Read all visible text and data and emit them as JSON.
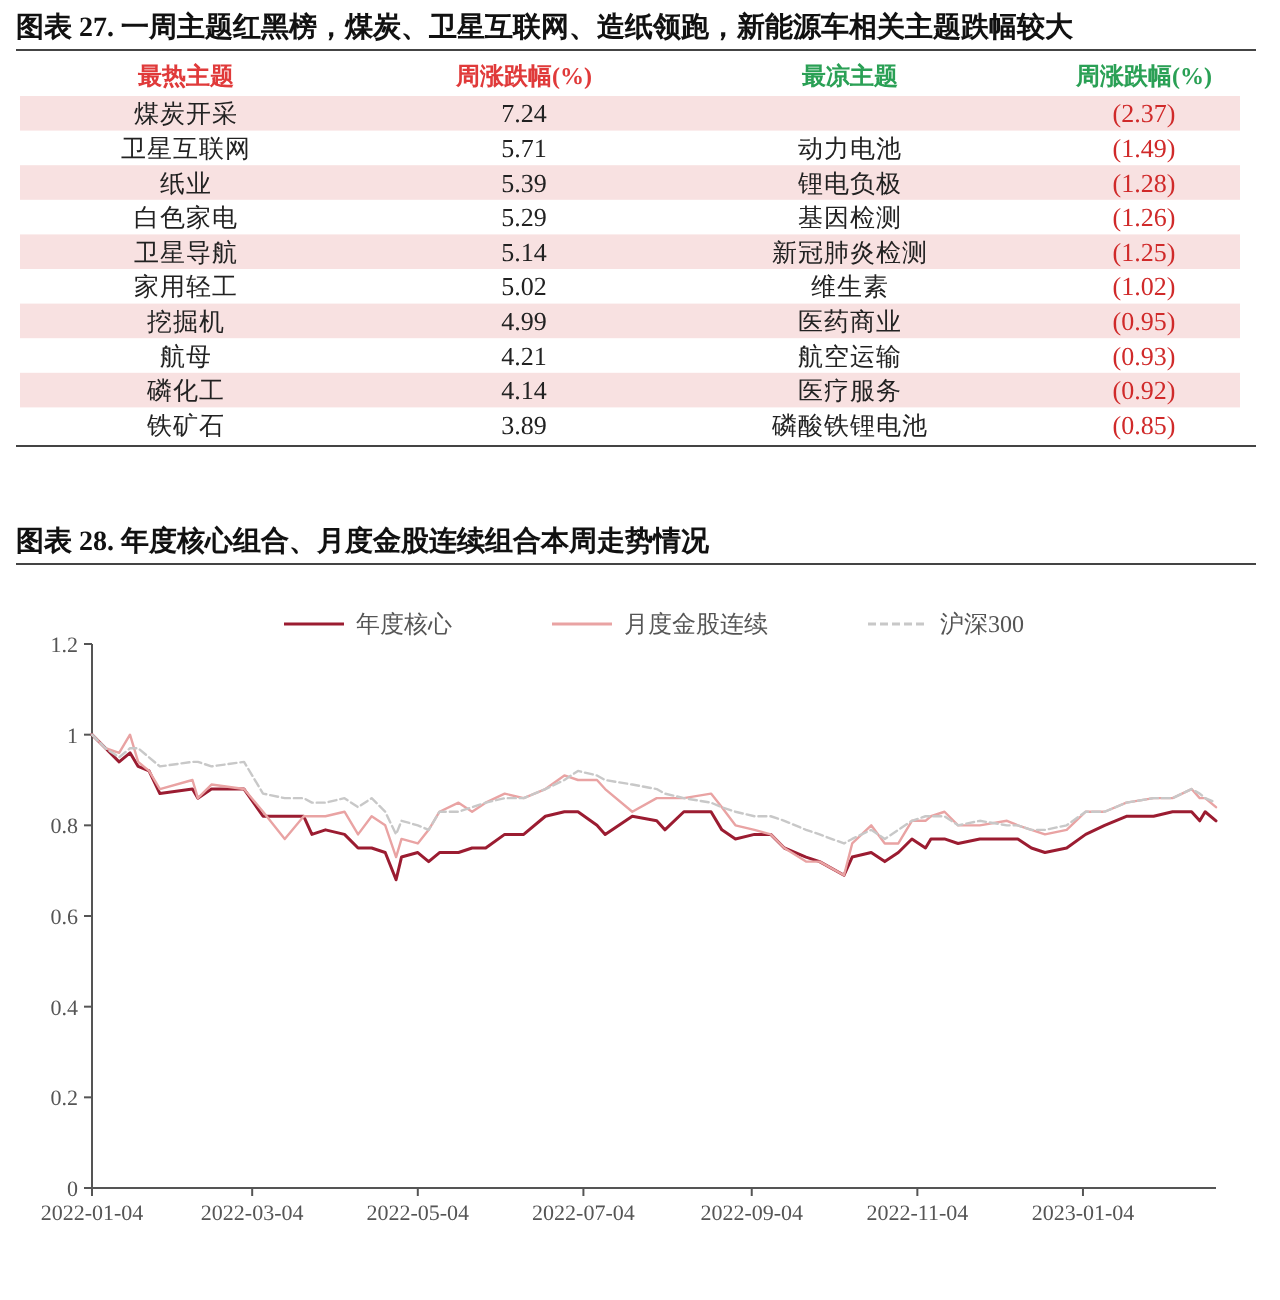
{
  "chart_data": [
    {
      "type": "other",
      "title": "图表 27. 一周主题红黑榜，煤炭、卫星互联网、造纸领跑，新能源车相关主题跌幅较大",
      "xlabel": "最热主题",
      "categories": [
        "煤炭开采",
        "卫星互联网",
        "纸业",
        "白色家电",
        "卫星导航",
        "家用轻工",
        "挖掘机",
        "航母",
        "磷化工",
        "铁矿石"
      ],
      "series": [
        {
          "name": "周涨跌幅(%)",
          "values": [
            7.24,
            5.71,
            5.39,
            5.29,
            5.14,
            5.02,
            4.99,
            4.21,
            4.14,
            3.89
          ]
        }
      ],
      "data_labels": true
    },
    {
      "type": "other",
      "xlabel": "最凉主题",
      "categories": [
        null,
        "动力电池",
        "锂电负极",
        "基因检测",
        "新冠肺炎检测",
        "维生素",
        "医药商业",
        "航空运输",
        "医疗服务",
        "磷酸铁锂电池"
      ],
      "series": [
        {
          "name": "周涨跌幅(%)",
          "values": [
            -2.37,
            -1.49,
            -1.28,
            -1.26,
            -1.25,
            -1.02,
            -0.95,
            -0.93,
            -0.92,
            -0.85
          ],
          "value_labels": [
            "(2.37)",
            "(1.49)",
            "(1.28)",
            "(1.26)",
            "(1.25)",
            "(1.02)",
            "(0.95)",
            "(0.93)",
            "(0.92)",
            "(0.85)"
          ]
        }
      ]
    },
    {
      "type": "line",
      "title": "图表 28. 年度核心组合、月度金股连续组合本周走势情况",
      "x": [
        "2022-01-04",
        "2022-01-09",
        "2022-01-14",
        "2022-01-18",
        "2022-01-21",
        "2022-01-25",
        "2022-01-29",
        "2022-02-10",
        "2022-02-12",
        "2022-02-17",
        "2022-03-01",
        "2022-03-08",
        "2022-03-16",
        "2022-03-23",
        "2022-03-26",
        "2022-03-31",
        "2022-04-07",
        "2022-04-12",
        "2022-04-17",
        "2022-04-22",
        "2022-04-26",
        "2022-04-28",
        "2022-05-04",
        "2022-05-08",
        "2022-05-12",
        "2022-05-19",
        "2022-05-24",
        "2022-05-29",
        "2022-06-05",
        "2022-06-12",
        "2022-06-20",
        "2022-06-27",
        "2022-07-02",
        "2022-07-09",
        "2022-07-12",
        "2022-07-22",
        "2022-07-31",
        "2022-08-03",
        "2022-08-10",
        "2022-08-20",
        "2022-08-24",
        "2022-08-29",
        "2022-09-05",
        "2022-09-11",
        "2022-09-16",
        "2022-09-24",
        "2022-09-29",
        "2022-10-08",
        "2022-10-11",
        "2022-10-18",
        "2022-10-23",
        "2022-10-28",
        "2022-11-02",
        "2022-11-07",
        "2022-11-09",
        "2022-11-14",
        "2022-11-19",
        "2022-11-27",
        "2022-12-07",
        "2022-12-11",
        "2022-12-16",
        "2022-12-21",
        "2022-12-29",
        "2023-01-05",
        "2023-01-12",
        "2023-01-20",
        "2023-01-30",
        "2023-02-06",
        "2023-02-13",
        "2023-02-16",
        "2023-02-18",
        "2023-02-22"
      ],
      "series": [
        {
          "name": "年度核心",
          "color": "#9b1c31",
          "values": [
            1.0,
            0.97,
            0.94,
            0.96,
            0.93,
            0.92,
            0.87,
            0.88,
            0.86,
            0.88,
            0.88,
            0.82,
            0.82,
            0.82,
            0.78,
            0.79,
            0.78,
            0.75,
            0.75,
            0.74,
            0.68,
            0.73,
            0.74,
            0.72,
            0.74,
            0.74,
            0.75,
            0.75,
            0.78,
            0.78,
            0.82,
            0.83,
            0.83,
            0.8,
            0.78,
            0.82,
            0.81,
            0.79,
            0.83,
            0.83,
            0.79,
            0.77,
            0.78,
            0.78,
            0.75,
            0.73,
            0.72,
            0.69,
            0.73,
            0.74,
            0.72,
            0.74,
            0.77,
            0.75,
            0.77,
            0.77,
            0.76,
            0.77,
            0.77,
            0.77,
            0.75,
            0.74,
            0.75,
            0.78,
            0.8,
            0.82,
            0.82,
            0.83,
            0.83,
            0.81,
            0.83,
            0.81
          ]
        },
        {
          "name": "月度金股连续",
          "color": "#e9a3a3",
          "values": [
            1.0,
            0.97,
            0.96,
            1.0,
            0.94,
            0.92,
            0.88,
            0.9,
            0.86,
            0.89,
            0.88,
            0.83,
            0.77,
            0.82,
            0.82,
            0.82,
            0.83,
            0.78,
            0.82,
            0.8,
            0.73,
            0.77,
            0.76,
            0.79,
            0.83,
            0.85,
            0.83,
            0.85,
            0.87,
            0.86,
            0.88,
            0.91,
            0.9,
            0.9,
            0.88,
            0.83,
            0.86,
            0.86,
            0.86,
            0.87,
            0.84,
            0.8,
            0.79,
            0.78,
            0.75,
            0.72,
            0.72,
            0.69,
            0.76,
            0.8,
            0.76,
            0.76,
            0.81,
            0.81,
            0.82,
            0.83,
            0.8,
            0.8,
            0.81,
            0.8,
            0.79,
            0.78,
            0.79,
            0.83,
            0.83,
            0.85,
            0.86,
            0.86,
            0.88,
            0.86,
            0.86,
            0.84
          ]
        },
        {
          "name": "沪深300",
          "color": "#c8c8c8",
          "line_style": "dashed",
          "values": [
            1.0,
            0.97,
            0.95,
            0.97,
            0.97,
            0.95,
            0.93,
            0.94,
            0.94,
            0.93,
            0.94,
            0.87,
            0.86,
            0.86,
            0.85,
            0.85,
            0.86,
            0.84,
            0.86,
            0.83,
            0.78,
            0.81,
            0.8,
            0.79,
            0.83,
            0.83,
            0.84,
            0.85,
            0.86,
            0.86,
            0.88,
            0.9,
            0.92,
            0.91,
            0.9,
            0.89,
            0.88,
            0.87,
            0.86,
            0.85,
            0.84,
            0.83,
            0.82,
            0.82,
            0.81,
            0.79,
            0.78,
            0.76,
            0.77,
            0.79,
            0.77,
            0.79,
            0.81,
            0.82,
            0.82,
            0.82,
            0.8,
            0.81,
            0.8,
            0.8,
            0.79,
            0.79,
            0.8,
            0.83,
            0.83,
            0.85,
            0.86,
            0.86,
            0.88,
            0.87,
            0.86,
            0.85
          ]
        }
      ],
      "xlim": [
        "2022-01-04",
        "2023-02-22"
      ],
      "xticks": [
        "2022-01-04",
        "2022-03-04",
        "2022-05-04",
        "2022-07-04",
        "2022-09-04",
        "2022-11-04",
        "2023-01-04"
      ],
      "ylim": [
        0,
        1.2
      ],
      "yticks": [
        0,
        0.2,
        0.4,
        0.6,
        0.8,
        1,
        1.2
      ],
      "legend": "top",
      "grid": false
    }
  ]
}
